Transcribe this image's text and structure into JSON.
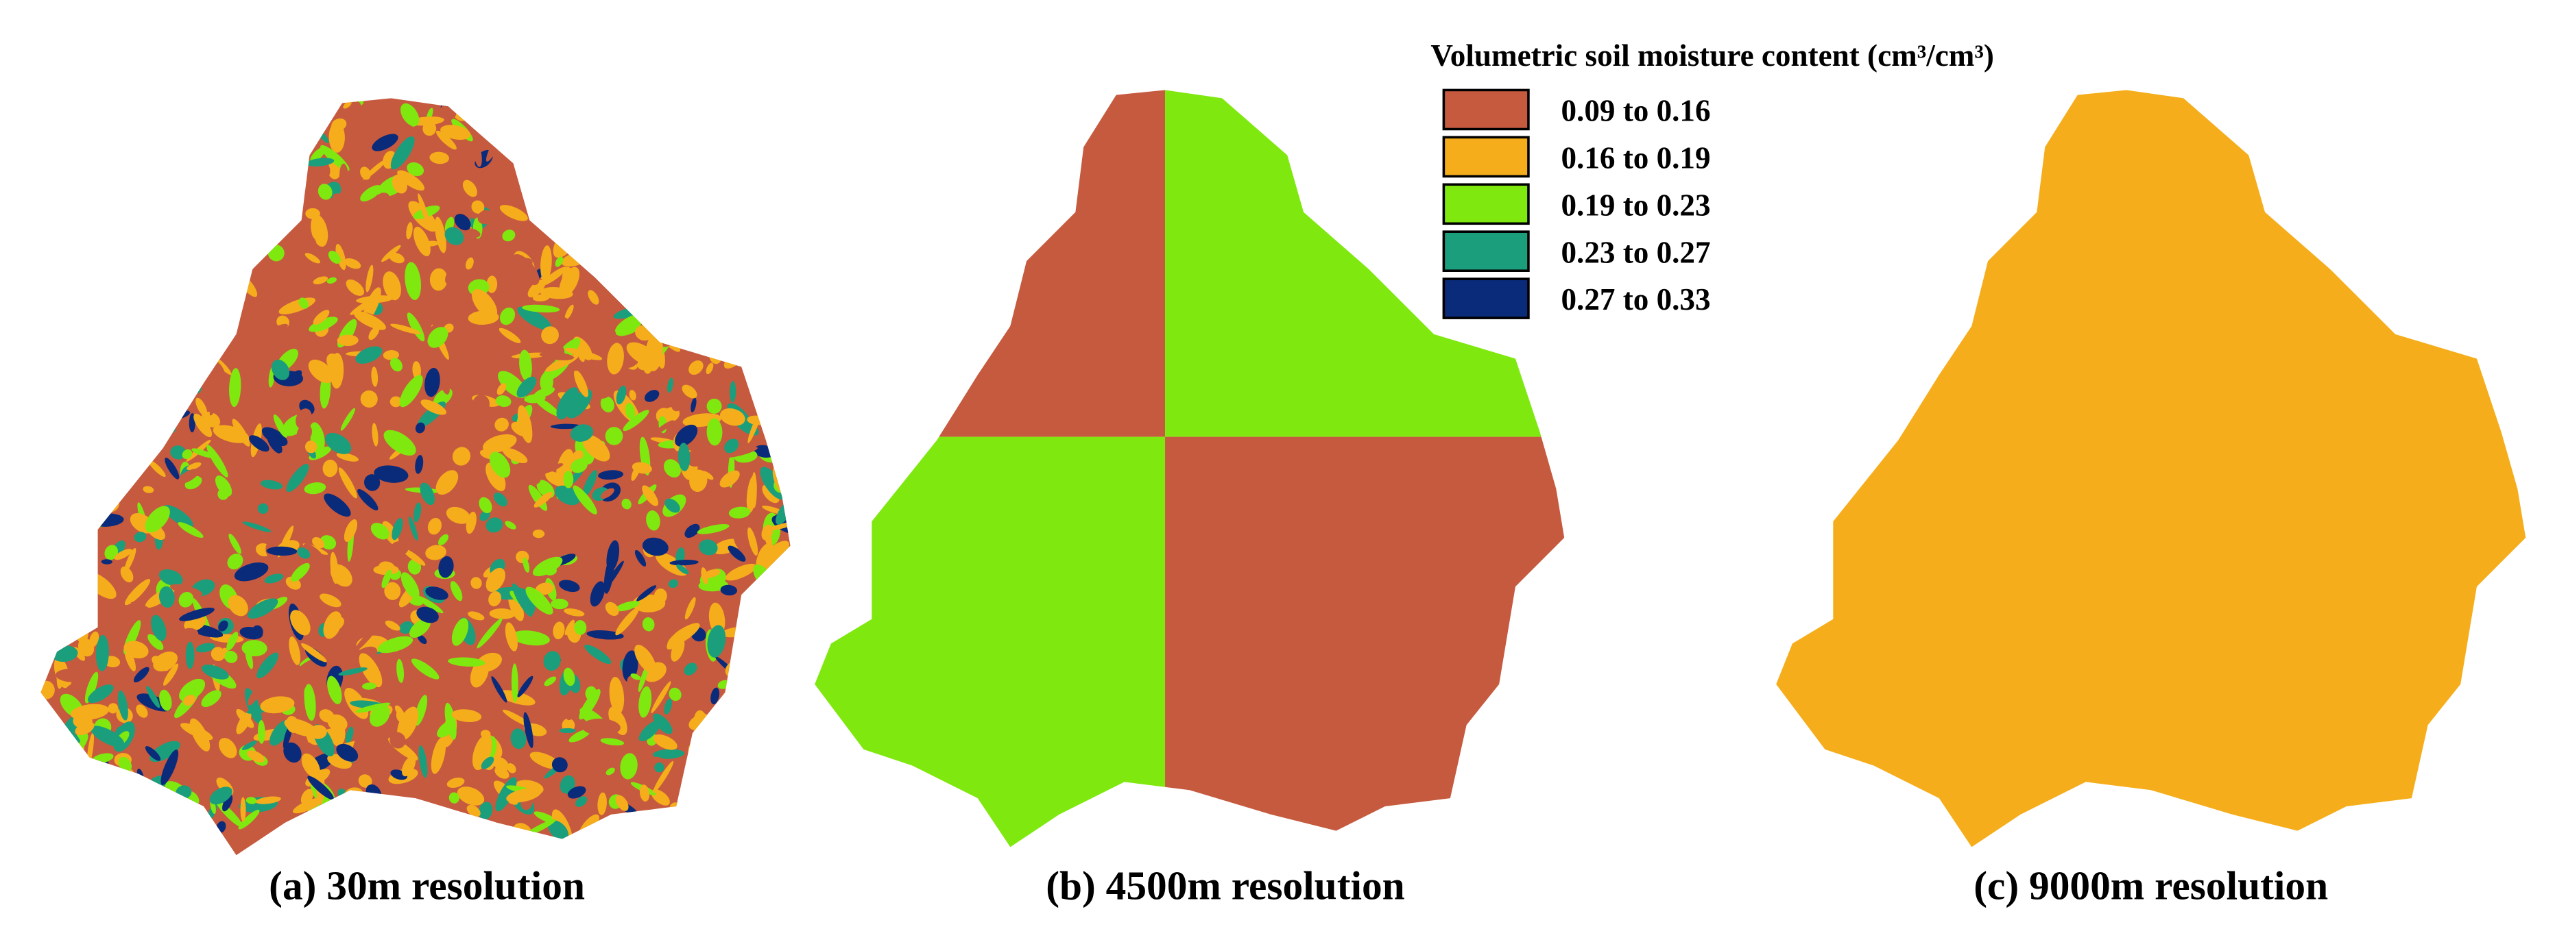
{
  "legend": {
    "title": "Volumetric soil moisture content (cm³/cm³)",
    "items": [
      {
        "label": "0.09 to 0.16",
        "color": "#c65a3f"
      },
      {
        "label": "0.16 to 0.19",
        "color": "#f5ad1c"
      },
      {
        "label": "0.19 to 0.23",
        "color": "#7fe80f"
      },
      {
        "label": "0.23 to 0.27",
        "color": "#1b9e7c"
      },
      {
        "label": "0.27 to 0.33",
        "color": "#0a2a7a"
      }
    ]
  },
  "panels": [
    {
      "caption": "(a) 30m resolution"
    },
    {
      "caption": "(b) 4500m resolution"
    },
    {
      "caption": "(c) 9000m resolution"
    }
  ]
}
